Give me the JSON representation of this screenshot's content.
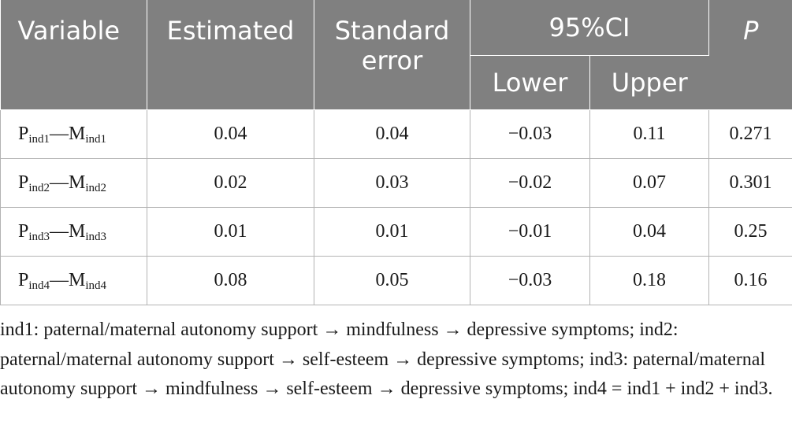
{
  "header": {
    "variable": "Variable",
    "estimated": "Estimated",
    "standard_error": "Standard error",
    "ci": "95%CI",
    "lower": "Lower",
    "upper": "Upper",
    "p": "P"
  },
  "rows": [
    {
      "p_main": "P",
      "p_sub": "ind1",
      "dash": "—",
      "m_main": "M",
      "m_sub": "ind1",
      "estimated": "0.04",
      "se": "0.04",
      "lower": "−0.03",
      "upper": "0.11",
      "p": "0.271"
    },
    {
      "p_main": "P",
      "p_sub": "ind2",
      "dash": "—",
      "m_main": "M",
      "m_sub": "ind2",
      "estimated": "0.02",
      "se": "0.03",
      "lower": "−0.02",
      "upper": "0.07",
      "p": "0.301"
    },
    {
      "p_main": "P",
      "p_sub": "ind3",
      "dash": "—",
      "m_main": "M",
      "m_sub": "ind3",
      "estimated": "0.01",
      "se": "0.01",
      "lower": "−0.01",
      "upper": "0.04",
      "p": "0.25"
    },
    {
      "p_main": "P",
      "p_sub": "ind4",
      "dash": "—",
      "m_main": "M",
      "m_sub": "ind4",
      "estimated": "0.08",
      "se": "0.05",
      "lower": "−0.03",
      "upper": "0.18",
      "p": "0.16"
    }
  ],
  "footnote": "ind1: paternal/maternal autonomy support → mindfulness → depressive symptoms; ind2: paternal/maternal autonomy support → self-esteem → depressive symptoms; ind3: paternal/maternal autonomy support → mindfulness → self-esteem → depressive symptoms; ind4 = ind1 + ind2 + ind3."
}
